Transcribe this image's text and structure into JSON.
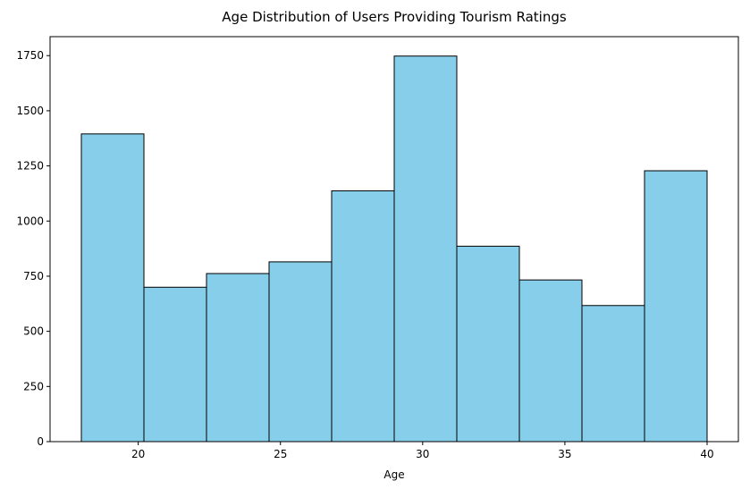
{
  "chart_data": {
    "type": "bar",
    "title": "Age Distribution of Users Providing Tourism Ratings",
    "xlabel": "Age",
    "ylabel": "",
    "bins": [
      {
        "start": 18.0,
        "end": 20.2,
        "count": 1395
      },
      {
        "start": 20.2,
        "end": 22.4,
        "count": 700
      },
      {
        "start": 22.4,
        "end": 24.6,
        "count": 762
      },
      {
        "start": 24.6,
        "end": 26.8,
        "count": 815
      },
      {
        "start": 26.8,
        "end": 29.0,
        "count": 1137
      },
      {
        "start": 29.0,
        "end": 31.2,
        "count": 1748
      },
      {
        "start": 31.2,
        "end": 33.4,
        "count": 886
      },
      {
        "start": 33.4,
        "end": 35.6,
        "count": 733
      },
      {
        "start": 35.6,
        "end": 37.8,
        "count": 617
      },
      {
        "start": 37.8,
        "end": 40.0,
        "count": 1228
      }
    ],
    "xlim": [
      16.9,
      41.1
    ],
    "ylim": [
      0,
      1836
    ],
    "xticks": [
      "20",
      "25",
      "30",
      "35",
      "40"
    ],
    "yticks": [
      "0",
      "250",
      "500",
      "750",
      "1000",
      "1250",
      "1500",
      "1750"
    ],
    "bar_color": "#87ceeb",
    "edge_color": "#000000",
    "grid": false
  }
}
